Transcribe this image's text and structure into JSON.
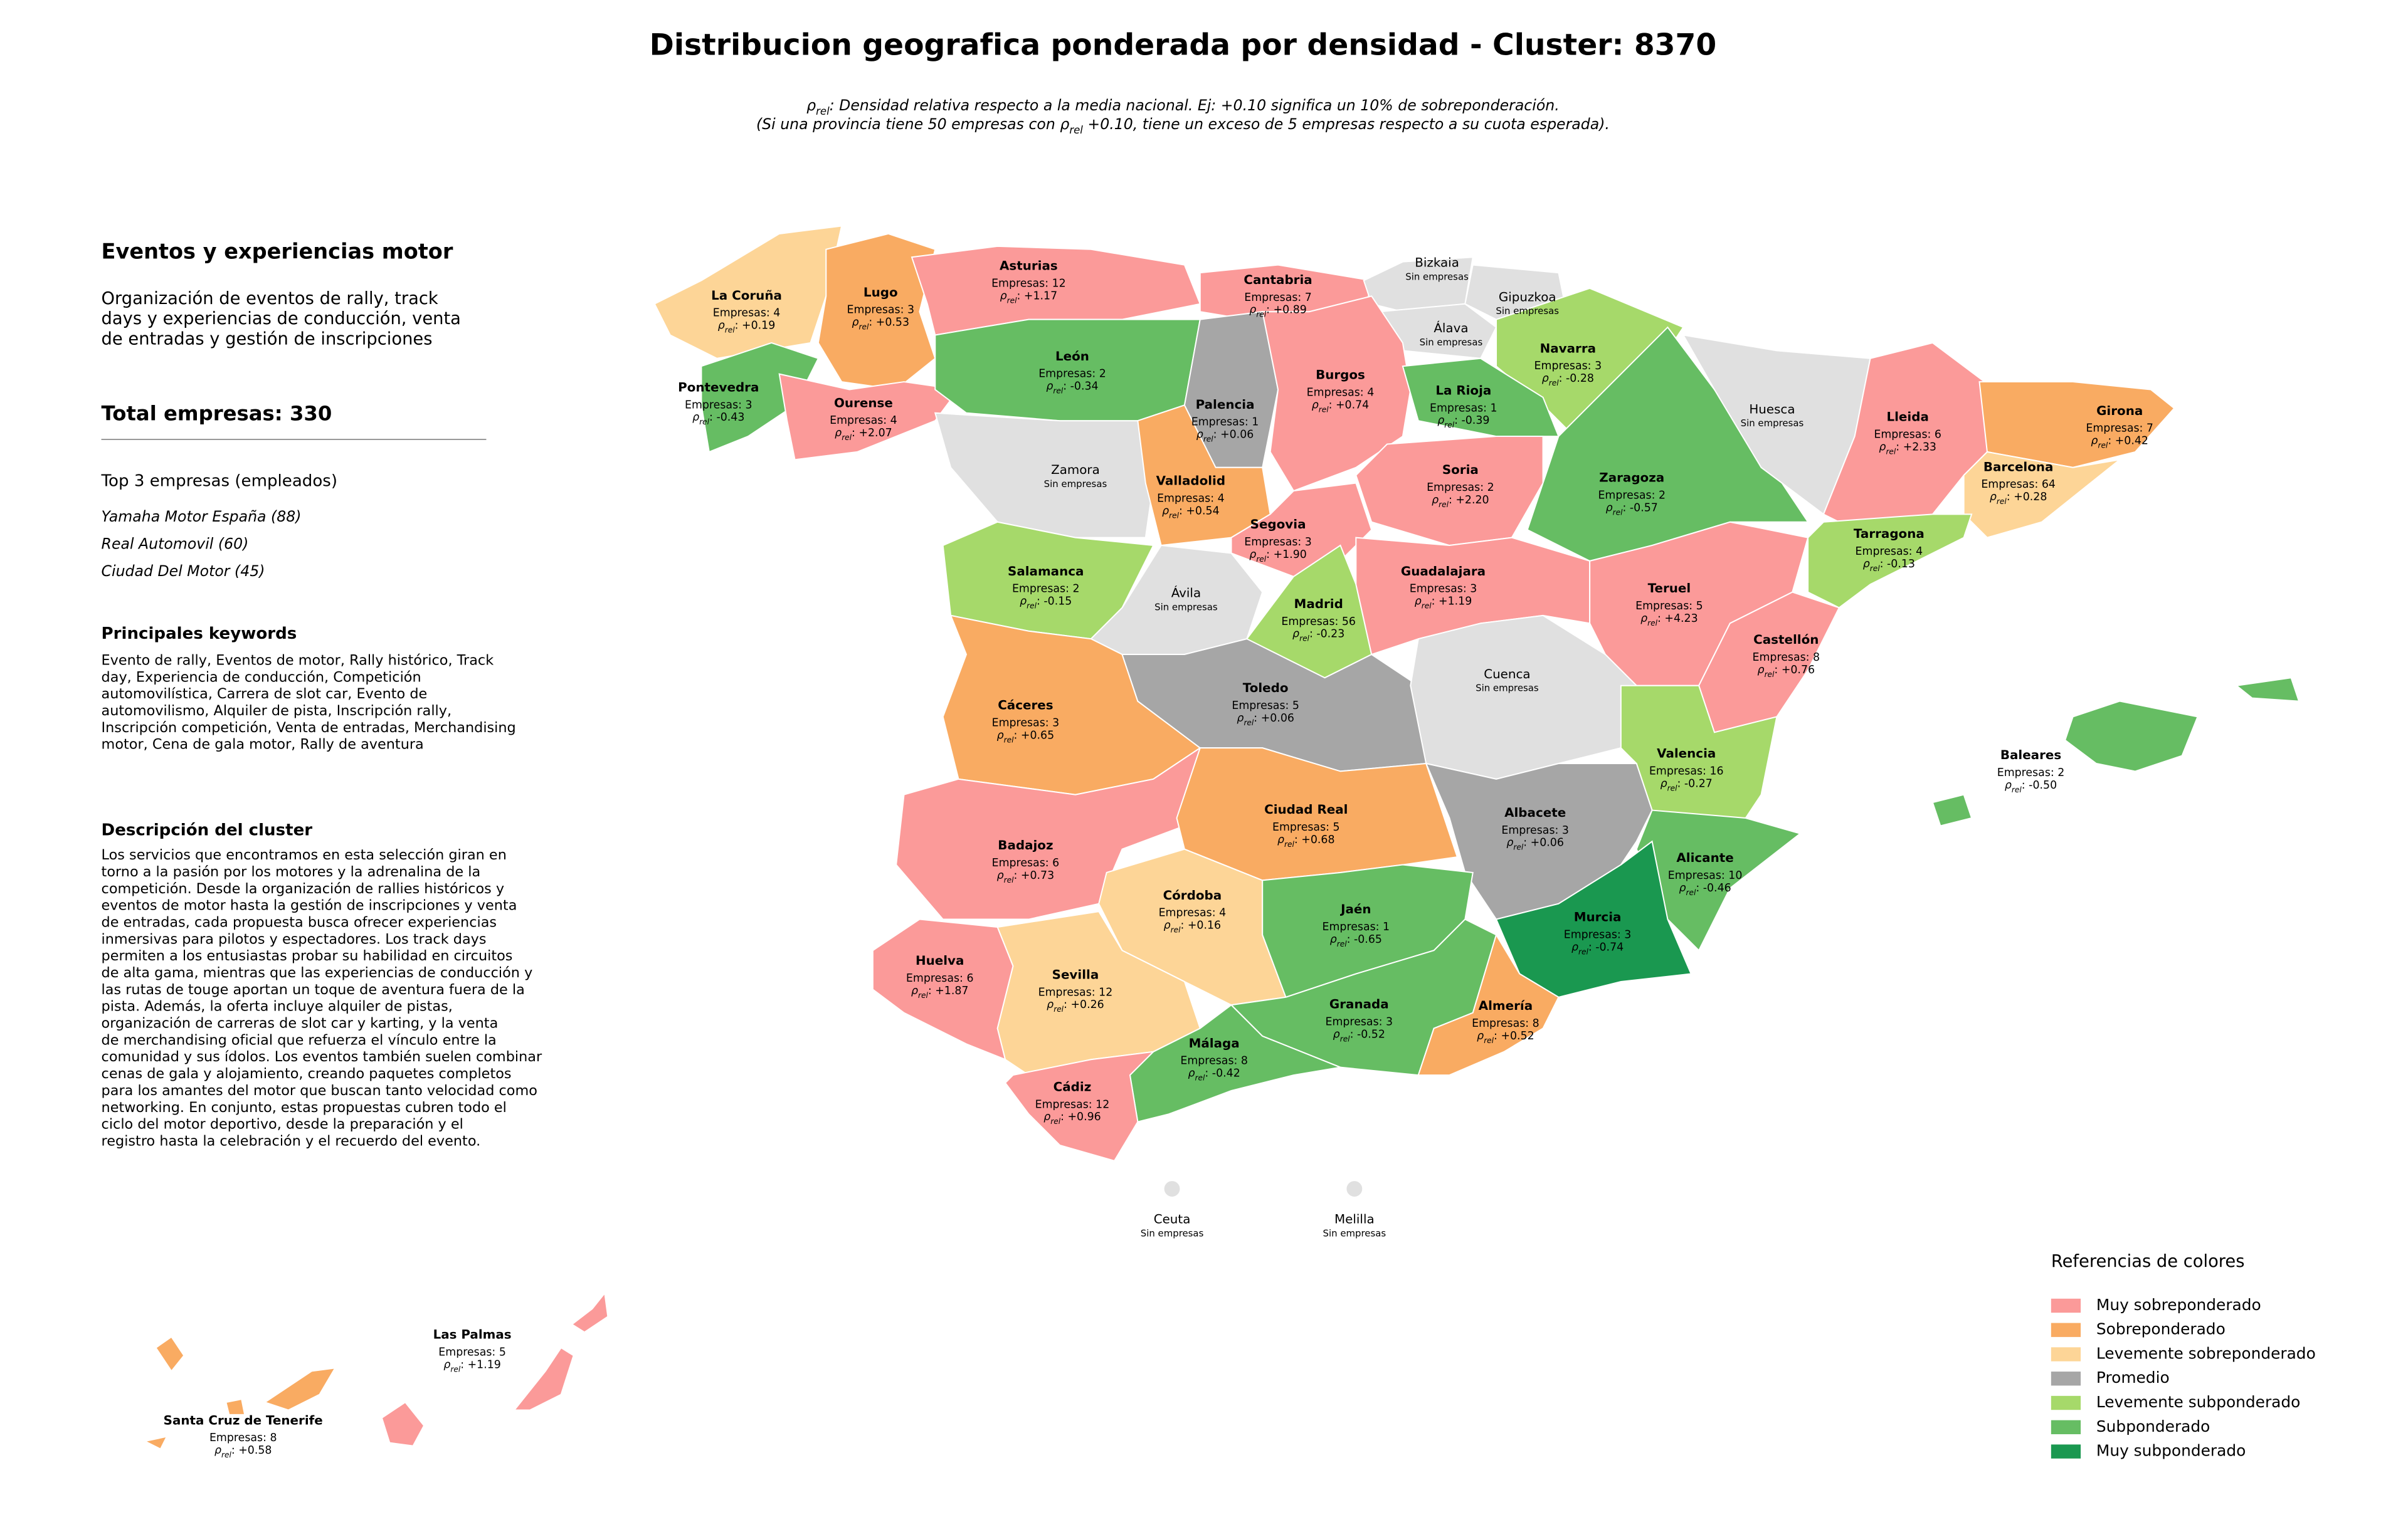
{
  "title": "Distribucion geografica ponderada por densidad - Cluster: 8370",
  "subtitle": {
    "rho": "ρ",
    "rel": "rel",
    "line1_rest": ": Densidad relativa respecto a la media nacional. Ej: +0.10 significa un 10% de sobreponderación.",
    "line2_start": "(Si una provincia tiene 50 empresas con ",
    "line2_end": " +0.10, tiene un exceso de 5 empresas respecto a su cuota esperada)."
  },
  "sidebar": {
    "cluster_name": "Eventos y experiencias motor",
    "summary_lines": [
      "Organización de eventos de rally, track",
      "days y experiencias de conducción, venta",
      "de entradas y gestión de inscripciones"
    ],
    "total_label": "Total empresas: ",
    "total": 330,
    "top_heading": "Top 3 empresas (empleados)",
    "top_companies": [
      "Yamaha Motor España (88)",
      "Real Automovil (60)",
      "Ciudad Del Motor (45)"
    ],
    "keywords_heading": "Principales keywords",
    "keywords_lines": [
      "Evento de rally, Eventos de motor, Rally histórico, Track",
      "day, Experiencia de conducción, Competición",
      "automovilística, Carrera de slot car, Evento de",
      "automovilismo, Alquiler de pista, Inscripción rally,",
      "Inscripción competición, Venta de entradas, Merchandising",
      "motor, Cena de gala motor, Rally de aventura"
    ],
    "description_heading": "Descripción del cluster",
    "description_lines": [
      "Los servicios que encontramos en esta selección giran en",
      "torno a la pasión por los motores y la adrenalina de la",
      "competición. Desde la organización de rallies históricos y",
      "eventos de motor hasta la gestión de inscripciones y venta",
      "de entradas, cada propuesta busca ofrecer experiencias",
      "inmersivas para pilotos y espectadores. Los track days",
      "permiten a los entusiastas probar su habilidad en circuitos",
      "de alta gama, mientras que las experiencias de conducción y",
      "las rutas de touge aportan un toque de aventura fuera de la",
      "pista. Además, la oferta incluye alquiler de pistas,",
      "organización de carreras de slot car y karting, y la venta",
      "de merchandising oficial que refuerza el vínculo entre la",
      "comunidad y sus ídolos. Los eventos también suelen combinar",
      "cenas de gala y alojamiento, creando paquetes completos",
      "para los amantes del motor que buscan tanto velocidad como",
      "networking. En conjunto, estas propuestas cubren todo el",
      "ciclo del motor deportivo, desde la preparación y el",
      "registro hasta la celebración y el recuerdo del evento."
    ]
  },
  "map": {
    "companies_prefix": "Empresas: ",
    "rho_separator": ": ",
    "no_companies_label": "Sin empresas",
    "no_companies_color": "#e0e0e0",
    "provinces": [
      {
        "name": "La Coruña",
        "companies": 4,
        "rho": "+0.19",
        "category": 2
      },
      {
        "name": "Lugo",
        "companies": 3,
        "rho": "+0.53",
        "category": 1
      },
      {
        "name": "Asturias",
        "companies": 12,
        "rho": "+1.17",
        "category": 0
      },
      {
        "name": "Cantabria",
        "companies": 7,
        "rho": "+0.89",
        "category": 0
      },
      {
        "name": "Bizkaia",
        "companies": null,
        "rho": null,
        "category": null
      },
      {
        "name": "Gipuzkoa",
        "companies": null,
        "rho": null,
        "category": null
      },
      {
        "name": "Álava",
        "companies": null,
        "rho": null,
        "category": null
      },
      {
        "name": "Navarra",
        "companies": 3,
        "rho": "-0.28",
        "category": 4
      },
      {
        "name": "Pontevedra",
        "companies": 3,
        "rho": "-0.43",
        "category": 5
      },
      {
        "name": "Ourense",
        "companies": 4,
        "rho": "+2.07",
        "category": 0
      },
      {
        "name": "León",
        "companies": 2,
        "rho": "-0.34",
        "category": 5
      },
      {
        "name": "Palencia",
        "companies": 1,
        "rho": "+0.06",
        "category": 3
      },
      {
        "name": "Burgos",
        "companies": 4,
        "rho": "+0.74",
        "category": 0
      },
      {
        "name": "La Rioja",
        "companies": 1,
        "rho": "-0.39",
        "category": 5
      },
      {
        "name": "Zamora",
        "companies": null,
        "rho": null,
        "category": null
      },
      {
        "name": "Valladolid",
        "companies": 4,
        "rho": "+0.54",
        "category": 1
      },
      {
        "name": "Soria",
        "companies": 2,
        "rho": "+2.20",
        "category": 0
      },
      {
        "name": "Zaragoza",
        "companies": 2,
        "rho": "-0.57",
        "category": 5
      },
      {
        "name": "Huesca",
        "companies": null,
        "rho": null,
        "category": null
      },
      {
        "name": "Lleida",
        "companies": 6,
        "rho": "+2.33",
        "category": 0
      },
      {
        "name": "Girona",
        "companies": 7,
        "rho": "+0.42",
        "category": 1
      },
      {
        "name": "Barcelona",
        "companies": 64,
        "rho": "+0.28",
        "category": 2
      },
      {
        "name": "Tarragona",
        "companies": 4,
        "rho": "-0.13",
        "category": 4
      },
      {
        "name": "Salamanca",
        "companies": 2,
        "rho": "-0.15",
        "category": 4
      },
      {
        "name": "Segovia",
        "companies": 3,
        "rho": "+1.90",
        "category": 0
      },
      {
        "name": "Ávila",
        "companies": null,
        "rho": null,
        "category": null
      },
      {
        "name": "Madrid",
        "companies": 56,
        "rho": "-0.23",
        "category": 4
      },
      {
        "name": "Guadalajara",
        "companies": 3,
        "rho": "+1.19",
        "category": 0
      },
      {
        "name": "Teruel",
        "companies": 5,
        "rho": "+4.23",
        "category": 0
      },
      {
        "name": "Castellón",
        "companies": 8,
        "rho": "+0.76",
        "category": 0
      },
      {
        "name": "Cáceres",
        "companies": 3,
        "rho": "+0.65",
        "category": 1
      },
      {
        "name": "Toledo",
        "companies": 5,
        "rho": "+0.06",
        "category": 3
      },
      {
        "name": "Cuenca",
        "companies": null,
        "rho": null,
        "category": null
      },
      {
        "name": "Valencia",
        "companies": 16,
        "rho": "-0.27",
        "category": 4
      },
      {
        "name": "Baleares",
        "companies": 2,
        "rho": "-0.50",
        "category": 5
      },
      {
        "name": "Badajoz",
        "companies": 6,
        "rho": "+0.73",
        "category": 0
      },
      {
        "name": "Ciudad Real",
        "companies": 5,
        "rho": "+0.68",
        "category": 1
      },
      {
        "name": "Albacete",
        "companies": 3,
        "rho": "+0.06",
        "category": 3
      },
      {
        "name": "Alicante",
        "companies": 10,
        "rho": "-0.46",
        "category": 5
      },
      {
        "name": "Córdoba",
        "companies": 4,
        "rho": "+0.16",
        "category": 2
      },
      {
        "name": "Jaén",
        "companies": 1,
        "rho": "-0.65",
        "category": 5
      },
      {
        "name": "Murcia",
        "companies": 3,
        "rho": "-0.74",
        "category": 6
      },
      {
        "name": "Huelva",
        "companies": 6,
        "rho": "+1.87",
        "category": 0
      },
      {
        "name": "Sevilla",
        "companies": 12,
        "rho": "+0.26",
        "category": 2
      },
      {
        "name": "Granada",
        "companies": 3,
        "rho": "-0.52",
        "category": 5
      },
      {
        "name": "Almería",
        "companies": 8,
        "rho": "+0.52",
        "category": 1
      },
      {
        "name": "Málaga",
        "companies": 8,
        "rho": "-0.42",
        "category": 5
      },
      {
        "name": "Cádiz",
        "companies": 12,
        "rho": "+0.96",
        "category": 0
      },
      {
        "name": "Ceuta",
        "companies": null,
        "rho": null,
        "category": null
      },
      {
        "name": "Melilla",
        "companies": null,
        "rho": null,
        "category": null
      },
      {
        "name": "Las Palmas",
        "companies": 5,
        "rho": "+1.19",
        "category": 0
      },
      {
        "name": "Santa Cruz de Tenerife",
        "companies": 8,
        "rho": "+0.58",
        "category": 1
      }
    ]
  },
  "legend": {
    "title": "Referencias de colores",
    "items": [
      {
        "label": "Muy sobreponderado",
        "color": "#fb9a99"
      },
      {
        "label": "Sobreponderado",
        "color": "#f9ab62"
      },
      {
        "label": "Levemente sobreponderado",
        "color": "#fdd597"
      },
      {
        "label": "Promedio",
        "color": "#a6a6a6"
      },
      {
        "label": "Levemente subponderado",
        "color": "#a6d96a"
      },
      {
        "label": "Subponderado",
        "color": "#66bd63"
      },
      {
        "label": "Muy subponderado",
        "color": "#1a9850"
      }
    ]
  }
}
